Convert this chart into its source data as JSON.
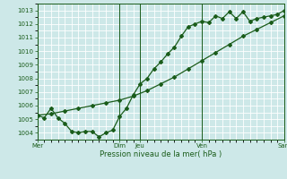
{
  "xlabel": "Pression niveau de la mer( hPa )",
  "bg_color": "#cde8e8",
  "grid_color": "#ffffff",
  "line_color": "#1a5c1a",
  "ylim": [
    1003.5,
    1013.5
  ],
  "yticks": [
    1004,
    1005,
    1006,
    1007,
    1008,
    1009,
    1010,
    1011,
    1012,
    1013
  ],
  "xtick_labels": [
    "Mer",
    "Dim",
    "Jeu",
    "Ven",
    "Sam"
  ],
  "xtick_positions": [
    0,
    6,
    7.5,
    12,
    18
  ],
  "vline_positions": [
    0,
    6,
    7.5,
    12,
    18
  ],
  "xmin": 0,
  "xmax": 18,
  "line1_x": [
    0,
    0.5,
    1.0,
    1.5,
    2.0,
    2.5,
    3.0,
    3.5,
    4.0,
    4.5,
    5.0,
    5.5,
    6.0,
    6.5,
    7.0,
    7.5,
    8.0,
    8.5,
    9.0,
    9.5,
    10.0,
    10.5,
    11.0,
    11.5,
    12.0,
    12.5,
    13.0,
    13.5,
    14.0,
    14.5,
    15.0,
    15.5,
    16.0,
    16.5,
    17.0,
    17.5,
    18.0
  ],
  "line1_y": [
    1005.3,
    1005.1,
    1005.8,
    1005.1,
    1004.7,
    1004.1,
    1004.0,
    1004.1,
    1004.1,
    1003.7,
    1004.0,
    1004.2,
    1005.2,
    1005.8,
    1006.8,
    1007.6,
    1008.0,
    1008.7,
    1009.2,
    1009.8,
    1010.3,
    1011.1,
    1011.8,
    1012.0,
    1012.2,
    1012.1,
    1012.6,
    1012.4,
    1012.9,
    1012.4,
    1012.9,
    1012.2,
    1012.4,
    1012.5,
    1012.6,
    1012.7,
    1013.0
  ],
  "line2_x": [
    0,
    1,
    2,
    3,
    4,
    5,
    6,
    7,
    8,
    9,
    10,
    11,
    12,
    13,
    14,
    15,
    16,
    17,
    18
  ],
  "line2_y": [
    1005.3,
    1005.4,
    1005.6,
    1005.8,
    1006.0,
    1006.2,
    1006.4,
    1006.7,
    1007.1,
    1007.6,
    1008.1,
    1008.7,
    1009.3,
    1009.9,
    1010.5,
    1011.1,
    1011.6,
    1012.1,
    1012.6
  ]
}
